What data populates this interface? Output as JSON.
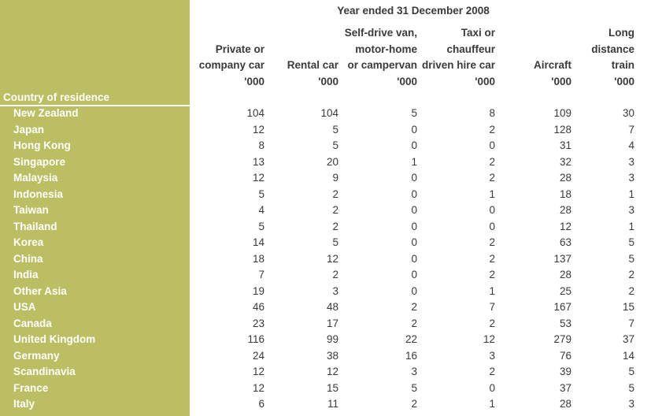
{
  "table": {
    "year_title": "Year ended 31 December 2008",
    "country_header": "Country of residence",
    "columns": [
      {
        "lines": [
          "Private or",
          "company car",
          "'000"
        ]
      },
      {
        "lines": [
          "Rental car",
          "'000"
        ]
      },
      {
        "lines": [
          "Self-drive van,",
          "motor-home",
          "or campervan",
          "'000"
        ]
      },
      {
        "lines": [
          "Taxi or",
          "chauffeur",
          "driven hire car",
          "'000"
        ]
      },
      {
        "lines": [
          "Aircraft",
          "'000"
        ]
      },
      {
        "lines": [
          "Long",
          "distance",
          "train",
          "'000"
        ]
      }
    ],
    "rows": [
      {
        "country": "New Zealand",
        "values": [
          "104",
          "104",
          "5",
          "8",
          "109",
          "30"
        ]
      },
      {
        "country": "Japan",
        "values": [
          "12",
          "5",
          "0",
          "2",
          "128",
          "7"
        ]
      },
      {
        "country": "Hong Kong",
        "values": [
          "8",
          "5",
          "0",
          "0",
          "31",
          "4"
        ]
      },
      {
        "country": "Singapore",
        "values": [
          "13",
          "20",
          "1",
          "2",
          "32",
          "3"
        ]
      },
      {
        "country": "Malaysia",
        "values": [
          "12",
          "9",
          "0",
          "2",
          "28",
          "3"
        ]
      },
      {
        "country": "Indonesia",
        "values": [
          "5",
          "2",
          "0",
          "1",
          "18",
          "1"
        ]
      },
      {
        "country": "Taiwan",
        "values": [
          "4",
          "2",
          "0",
          "0",
          "28",
          "3"
        ]
      },
      {
        "country": "Thailand",
        "values": [
          "5",
          "2",
          "0",
          "0",
          "12",
          "1"
        ]
      },
      {
        "country": "Korea",
        "values": [
          "14",
          "5",
          "0",
          "2",
          "63",
          "5"
        ]
      },
      {
        "country": "China",
        "values": [
          "18",
          "12",
          "0",
          "2",
          "137",
          "5"
        ]
      },
      {
        "country": "India",
        "values": [
          "7",
          "2",
          "0",
          "2",
          "28",
          "2"
        ]
      },
      {
        "country": "Other Asia",
        "values": [
          "19",
          "3",
          "0",
          "1",
          "25",
          "2"
        ]
      },
      {
        "country": "USA",
        "values": [
          "46",
          "48",
          "2",
          "7",
          "167",
          "15"
        ]
      },
      {
        "country": "Canada",
        "values": [
          "23",
          "17",
          "2",
          "2",
          "53",
          "7"
        ]
      },
      {
        "country": "United Kingdom",
        "values": [
          "116",
          "99",
          "22",
          "12",
          "279",
          "37"
        ]
      },
      {
        "country": "Germany",
        "values": [
          "24",
          "38",
          "16",
          "3",
          "76",
          "14"
        ]
      },
      {
        "country": "Scandinavia",
        "values": [
          "12",
          "12",
          "3",
          "2",
          "39",
          "5"
        ]
      },
      {
        "country": "France",
        "values": [
          "12",
          "15",
          "5",
          "0",
          "37",
          "5"
        ]
      },
      {
        "country": "Italy",
        "values": [
          "6",
          "11",
          "2",
          "1",
          "28",
          "3"
        ]
      }
    ]
  },
  "colors": {
    "sidebar": "#bcbe63",
    "text": "#3a3a3a",
    "sidebar_text": "#ffffff"
  }
}
